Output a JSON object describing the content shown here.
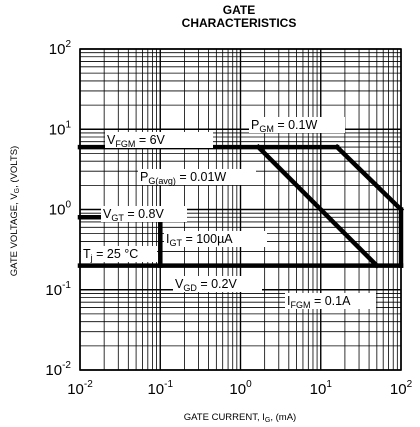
{
  "chart_data": {
    "type": "line",
    "title_line1": "GATE",
    "title_line2": "CHARACTERISTICS",
    "xlabel": {
      "main": "GATE CURRENT, I",
      "sub": "G",
      "unit": ", (mA)"
    },
    "ylabel": {
      "main": "GATE VOLTAGE, V",
      "sub": "G",
      "unit": ", (VOLTS)"
    },
    "x_scale": "log",
    "y_scale": "log",
    "xlim": [
      0.01,
      100
    ],
    "ylim": [
      0.01,
      100
    ],
    "grid": true,
    "x_ticks": [
      {
        "value": 0.01,
        "base": "10",
        "exp": "-2"
      },
      {
        "value": 0.1,
        "base": "10",
        "exp": "-1"
      },
      {
        "value": 1,
        "base": "10",
        "exp": "0"
      },
      {
        "value": 10,
        "base": "10",
        "exp": "1"
      },
      {
        "value": 100,
        "base": "10",
        "exp": "2"
      }
    ],
    "y_ticks": [
      {
        "value": 0.01,
        "base": "10",
        "exp": "-2"
      },
      {
        "value": 0.1,
        "base": "10",
        "exp": "-1"
      },
      {
        "value": 1,
        "base": "10",
        "exp": "0"
      },
      {
        "value": 10,
        "base": "10",
        "exp": "1"
      },
      {
        "value": 100,
        "base": "10",
        "exp": "2"
      }
    ],
    "curves": [
      {
        "id": "vfgm",
        "points": [
          [
            0.01,
            6
          ],
          [
            16,
            6
          ]
        ]
      },
      {
        "id": "pgm",
        "points": [
          [
            16,
            6
          ],
          [
            100,
            1
          ]
        ]
      },
      {
        "id": "pgavg",
        "points": [
          [
            1.67,
            6
          ],
          [
            50,
            0.2
          ]
        ]
      },
      {
        "id": "ifgm",
        "points": [
          [
            100,
            1
          ],
          [
            100,
            0.2
          ]
        ]
      },
      {
        "id": "vgd",
        "points": [
          [
            0.01,
            0.2
          ],
          [
            100,
            0.2
          ]
        ]
      },
      {
        "id": "vgt",
        "points": [
          [
            0.01,
            0.8
          ],
          [
            0.1,
            0.8
          ]
        ]
      },
      {
        "id": "igt",
        "points": [
          [
            0.1,
            0.8
          ],
          [
            0.1,
            0.2
          ]
        ]
      }
    ],
    "annotations": [
      {
        "id": "vfgm",
        "parts": [
          [
            "V",
            ""
          ],
          [
            "FGM",
            "sub"
          ],
          [
            " = 6V",
            ""
          ]
        ]
      },
      {
        "id": "pgm",
        "parts": [
          [
            "P",
            ""
          ],
          [
            "GM",
            "sub"
          ],
          [
            " = 0.1W",
            ""
          ]
        ]
      },
      {
        "id": "pgavg",
        "parts": [
          [
            "P",
            ""
          ],
          [
            "G(avg)",
            "sub"
          ],
          [
            " = 0.01W",
            ""
          ]
        ]
      },
      {
        "id": "vgt",
        "parts": [
          [
            "V",
            ""
          ],
          [
            "GT",
            "sub"
          ],
          [
            " = 0.8V",
            ""
          ]
        ]
      },
      {
        "id": "igt",
        "parts": [
          [
            "I",
            ""
          ],
          [
            "GT",
            "sub"
          ],
          [
            " = 100µA",
            ""
          ]
        ]
      },
      {
        "id": "tj",
        "parts": [
          [
            "T",
            ""
          ],
          [
            "j",
            "sub"
          ],
          [
            " = 25 °C",
            ""
          ]
        ]
      },
      {
        "id": "vgd",
        "parts": [
          [
            "V",
            ""
          ],
          [
            "GD",
            "sub"
          ],
          [
            " = 0.2V",
            ""
          ]
        ]
      },
      {
        "id": "ifgm",
        "parts": [
          [
            "I",
            ""
          ],
          [
            "FGM",
            "sub"
          ],
          [
            " = 0.1A",
            ""
          ]
        ]
      }
    ]
  }
}
